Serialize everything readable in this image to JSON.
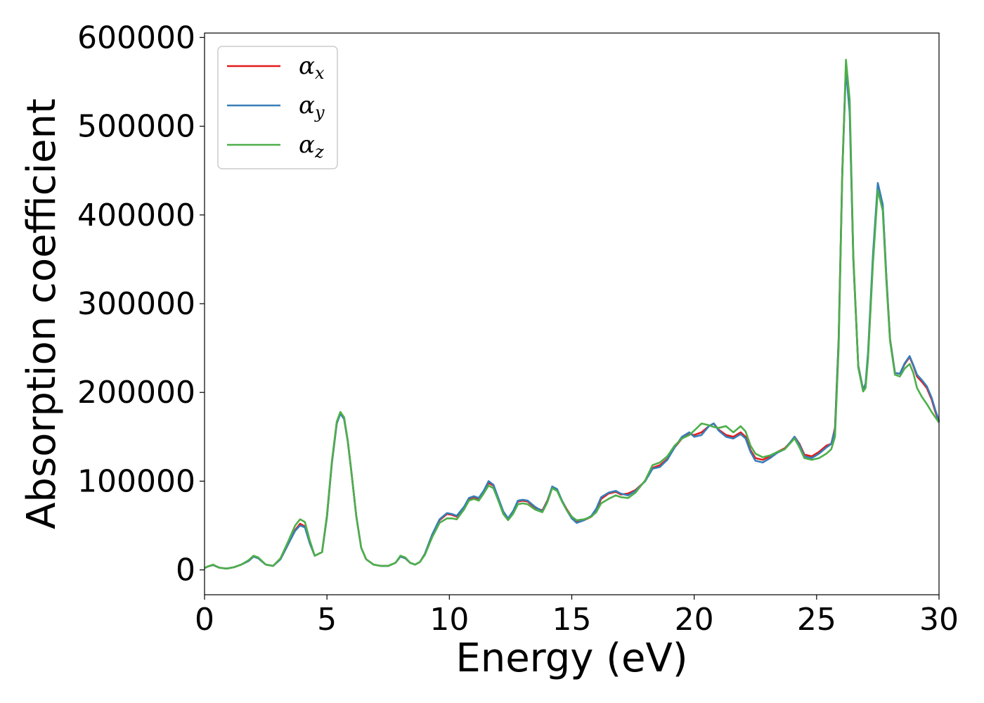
{
  "chart_data": {
    "type": "line",
    "xlabel": "Energy (eV)",
    "ylabel": "Absorption coefficient",
    "xlim": [
      0,
      30
    ],
    "ylim": [
      -28000,
      605000
    ],
    "xticks": [
      0,
      5,
      10,
      15,
      20,
      25,
      30
    ],
    "yticks": [
      0,
      100000,
      200000,
      300000,
      400000,
      500000,
      600000
    ],
    "grid": false,
    "legend_position": "top-left",
    "series": [
      {
        "name": "α",
        "subscript": "x",
        "color": "#e41a1c",
        "x": [
          0,
          0.15,
          0.35,
          0.6,
          0.9,
          1.2,
          1.5,
          1.8,
          2.0,
          2.2,
          2.5,
          2.8,
          3.1,
          3.4,
          3.7,
          3.9,
          4.1,
          4.3,
          4.5,
          4.8,
          5.0,
          5.2,
          5.4,
          5.55,
          5.7,
          5.85,
          6.0,
          6.2,
          6.4,
          6.6,
          6.9,
          7.2,
          7.5,
          7.8,
          8.0,
          8.2,
          8.4,
          8.6,
          8.8,
          9.0,
          9.3,
          9.6,
          9.9,
          10.1,
          10.3,
          10.6,
          10.8,
          11.0,
          11.2,
          11.4,
          11.6,
          11.8,
          12.0,
          12.2,
          12.4,
          12.6,
          12.8,
          13.0,
          13.2,
          13.5,
          13.8,
          14.0,
          14.2,
          14.4,
          14.6,
          14.8,
          15.0,
          15.2,
          15.5,
          15.8,
          16.0,
          16.2,
          16.5,
          16.8,
          17.0,
          17.3,
          17.6,
          18.0,
          18.3,
          18.6,
          18.9,
          19.2,
          19.5,
          19.8,
          20.0,
          20.3,
          20.6,
          20.8,
          21.0,
          21.3,
          21.6,
          21.9,
          22.1,
          22.3,
          22.5,
          22.8,
          23.1,
          23.4,
          23.7,
          23.9,
          24.1,
          24.3,
          24.5,
          24.8,
          25.1,
          25.4,
          25.6,
          25.75,
          25.9,
          26.05,
          26.2,
          26.35,
          26.5,
          26.7,
          26.9,
          27.0,
          27.1,
          27.3,
          27.5,
          27.7,
          27.85,
          28.0,
          28.2,
          28.4,
          28.6,
          28.8,
          28.95,
          29.1,
          29.3,
          29.5,
          29.7,
          29.85,
          30.0
        ],
        "y": [
          2000,
          4000,
          5500,
          2500,
          1500,
          3000,
          6000,
          10000,
          15000,
          13000,
          6000,
          4500,
          12000,
          28000,
          45000,
          52000,
          49000,
          30000,
          16000,
          20000,
          60000,
          120000,
          165000,
          177000,
          170000,
          145000,
          110000,
          60000,
          25000,
          12000,
          6000,
          4500,
          4500,
          8000,
          15000,
          13000,
          8000,
          6000,
          9000,
          18000,
          40000,
          56000,
          63000,
          62000,
          60000,
          70000,
          80000,
          82000,
          80000,
          88000,
          98000,
          95000,
          80000,
          65000,
          57000,
          65000,
          77000,
          78000,
          77000,
          70000,
          67000,
          78000,
          93000,
          90000,
          78000,
          68000,
          60000,
          54000,
          56000,
          60000,
          67000,
          80000,
          86000,
          88000,
          85000,
          86000,
          90000,
          100000,
          115000,
          118000,
          125000,
          138000,
          148000,
          153000,
          152000,
          155000,
          162000,
          165000,
          158000,
          152000,
          150000,
          155000,
          150000,
          135000,
          126000,
          124000,
          128000,
          133000,
          137000,
          143000,
          150000,
          142000,
          130000,
          128000,
          133000,
          140000,
          142000,
          160000,
          260000,
          450000,
          570000,
          520000,
          350000,
          230000,
          203000,
          208000,
          240000,
          350000,
          432000,
          410000,
          330000,
          260000,
          222000,
          221000,
          232000,
          240000,
          230000,
          218000,
          212000,
          205000,
          192000,
          178000,
          167000
        ]
      },
      {
        "name": "α",
        "subscript": "y",
        "color": "#377eb8",
        "x": [
          0,
          0.15,
          0.35,
          0.6,
          0.9,
          1.2,
          1.5,
          1.8,
          2.0,
          2.2,
          2.5,
          2.8,
          3.1,
          3.4,
          3.7,
          3.9,
          4.1,
          4.3,
          4.5,
          4.8,
          5.0,
          5.2,
          5.4,
          5.55,
          5.7,
          5.85,
          6.0,
          6.2,
          6.4,
          6.6,
          6.9,
          7.2,
          7.5,
          7.8,
          8.0,
          8.2,
          8.4,
          8.6,
          8.8,
          9.0,
          9.3,
          9.6,
          9.9,
          10.1,
          10.3,
          10.6,
          10.8,
          11.0,
          11.2,
          11.4,
          11.6,
          11.8,
          12.0,
          12.2,
          12.4,
          12.6,
          12.8,
          13.0,
          13.2,
          13.5,
          13.8,
          14.0,
          14.2,
          14.4,
          14.6,
          14.8,
          15.0,
          15.2,
          15.5,
          15.8,
          16.0,
          16.2,
          16.5,
          16.8,
          17.0,
          17.3,
          17.6,
          18.0,
          18.3,
          18.6,
          18.9,
          19.2,
          19.5,
          19.8,
          20.0,
          20.3,
          20.6,
          20.8,
          21.0,
          21.3,
          21.6,
          21.9,
          22.1,
          22.3,
          22.5,
          22.8,
          23.1,
          23.4,
          23.7,
          23.9,
          24.1,
          24.3,
          24.5,
          24.8,
          25.1,
          25.4,
          25.6,
          25.75,
          25.9,
          26.05,
          26.2,
          26.35,
          26.5,
          26.7,
          26.9,
          27.0,
          27.1,
          27.3,
          27.5,
          27.7,
          27.85,
          28.0,
          28.2,
          28.4,
          28.6,
          28.8,
          28.95,
          29.1,
          29.3,
          29.5,
          29.7,
          29.85,
          30.0
        ],
        "y": [
          2000,
          4000,
          5500,
          2500,
          1500,
          3000,
          6000,
          10000,
          15000,
          13000,
          6000,
          4500,
          12000,
          28000,
          44000,
          50000,
          48000,
          30000,
          16000,
          20000,
          60000,
          120000,
          165000,
          176000,
          170000,
          145000,
          110000,
          60000,
          25000,
          12000,
          6000,
          4500,
          4500,
          8000,
          15000,
          13000,
          8000,
          6000,
          9000,
          18000,
          40000,
          57000,
          64000,
          63000,
          61000,
          71000,
          81000,
          83000,
          81000,
          89000,
          100000,
          96000,
          81000,
          66000,
          58000,
          66000,
          78000,
          79000,
          78000,
          71000,
          66000,
          77000,
          94000,
          91000,
          78000,
          67000,
          58000,
          53000,
          56000,
          61000,
          69000,
          82000,
          87000,
          89000,
          86000,
          84000,
          89000,
          100000,
          114000,
          116000,
          124000,
          138000,
          150000,
          155000,
          150000,
          152000,
          162000,
          165000,
          157000,
          150000,
          148000,
          153000,
          148000,
          133000,
          123000,
          121000,
          126000,
          132000,
          136000,
          143000,
          150000,
          141000,
          128000,
          126000,
          131000,
          138000,
          142000,
          158000,
          258000,
          448000,
          565000,
          515000,
          350000,
          230000,
          203000,
          210000,
          245000,
          355000,
          436000,
          412000,
          330000,
          260000,
          222000,
          221000,
          233000,
          241000,
          231000,
          220000,
          214000,
          207000,
          194000,
          180000,
          168000
        ]
      },
      {
        "name": "α",
        "subscript": "z",
        "color": "#4daf4a",
        "x": [
          0,
          0.15,
          0.35,
          0.6,
          0.9,
          1.2,
          1.5,
          1.8,
          2.0,
          2.2,
          2.5,
          2.8,
          3.1,
          3.4,
          3.7,
          3.9,
          4.1,
          4.3,
          4.5,
          4.8,
          5.0,
          5.2,
          5.4,
          5.55,
          5.7,
          5.85,
          6.0,
          6.2,
          6.4,
          6.6,
          6.9,
          7.2,
          7.5,
          7.8,
          8.0,
          8.2,
          8.4,
          8.6,
          8.8,
          9.0,
          9.3,
          9.6,
          9.9,
          10.1,
          10.3,
          10.6,
          10.8,
          11.0,
          11.2,
          11.4,
          11.6,
          11.8,
          12.0,
          12.2,
          12.4,
          12.6,
          12.8,
          13.0,
          13.2,
          13.5,
          13.8,
          14.0,
          14.2,
          14.4,
          14.6,
          14.8,
          15.0,
          15.2,
          15.5,
          15.8,
          16.0,
          16.2,
          16.5,
          16.8,
          17.0,
          17.3,
          17.6,
          18.0,
          18.3,
          18.6,
          18.9,
          19.2,
          19.5,
          19.8,
          20.0,
          20.3,
          20.6,
          20.8,
          21.0,
          21.3,
          21.6,
          21.9,
          22.1,
          22.3,
          22.5,
          22.8,
          23.1,
          23.4,
          23.7,
          23.9,
          24.1,
          24.3,
          24.5,
          24.8,
          25.1,
          25.4,
          25.6,
          25.75,
          25.9,
          26.05,
          26.2,
          26.35,
          26.5,
          26.7,
          26.9,
          27.0,
          27.1,
          27.3,
          27.5,
          27.7,
          27.85,
          28.0,
          28.2,
          28.4,
          28.6,
          28.8,
          28.95,
          29.1,
          29.3,
          29.5,
          29.7,
          29.85,
          30.0
        ],
        "y": [
          2000,
          4000,
          6000,
          2500,
          1500,
          3000,
          6000,
          11000,
          16000,
          14000,
          6000,
          4500,
          13000,
          31000,
          50000,
          57000,
          54000,
          33000,
          16000,
          20000,
          62000,
          122000,
          167000,
          178000,
          172000,
          146000,
          110000,
          60000,
          25000,
          12000,
          6000,
          4500,
          4500,
          8000,
          16000,
          14000,
          8000,
          6000,
          9000,
          17000,
          37000,
          53000,
          58000,
          58000,
          57000,
          68000,
          78000,
          80000,
          78000,
          86000,
          95000,
          92000,
          78000,
          63000,
          56000,
          63000,
          74000,
          75000,
          74000,
          68000,
          65000,
          76000,
          92000,
          89000,
          77000,
          67000,
          60000,
          56000,
          57000,
          60000,
          65000,
          75000,
          80000,
          84000,
          82000,
          81000,
          87000,
          101000,
          118000,
          121000,
          128000,
          140000,
          148000,
          152000,
          157000,
          165000,
          163000,
          161000,
          160000,
          162000,
          155000,
          162000,
          156000,
          140000,
          131000,
          127000,
          129000,
          133000,
          136000,
          142000,
          148000,
          138000,
          126000,
          124000,
          126000,
          131000,
          136000,
          150000,
          250000,
          445000,
          575000,
          530000,
          355000,
          228000,
          201000,
          205000,
          238000,
          345000,
          428000,
          405000,
          325000,
          258000,
          220000,
          218000,
          227000,
          232000,
          222000,
          205000,
          195000,
          187000,
          178000,
          172000,
          166000
        ]
      }
    ]
  }
}
